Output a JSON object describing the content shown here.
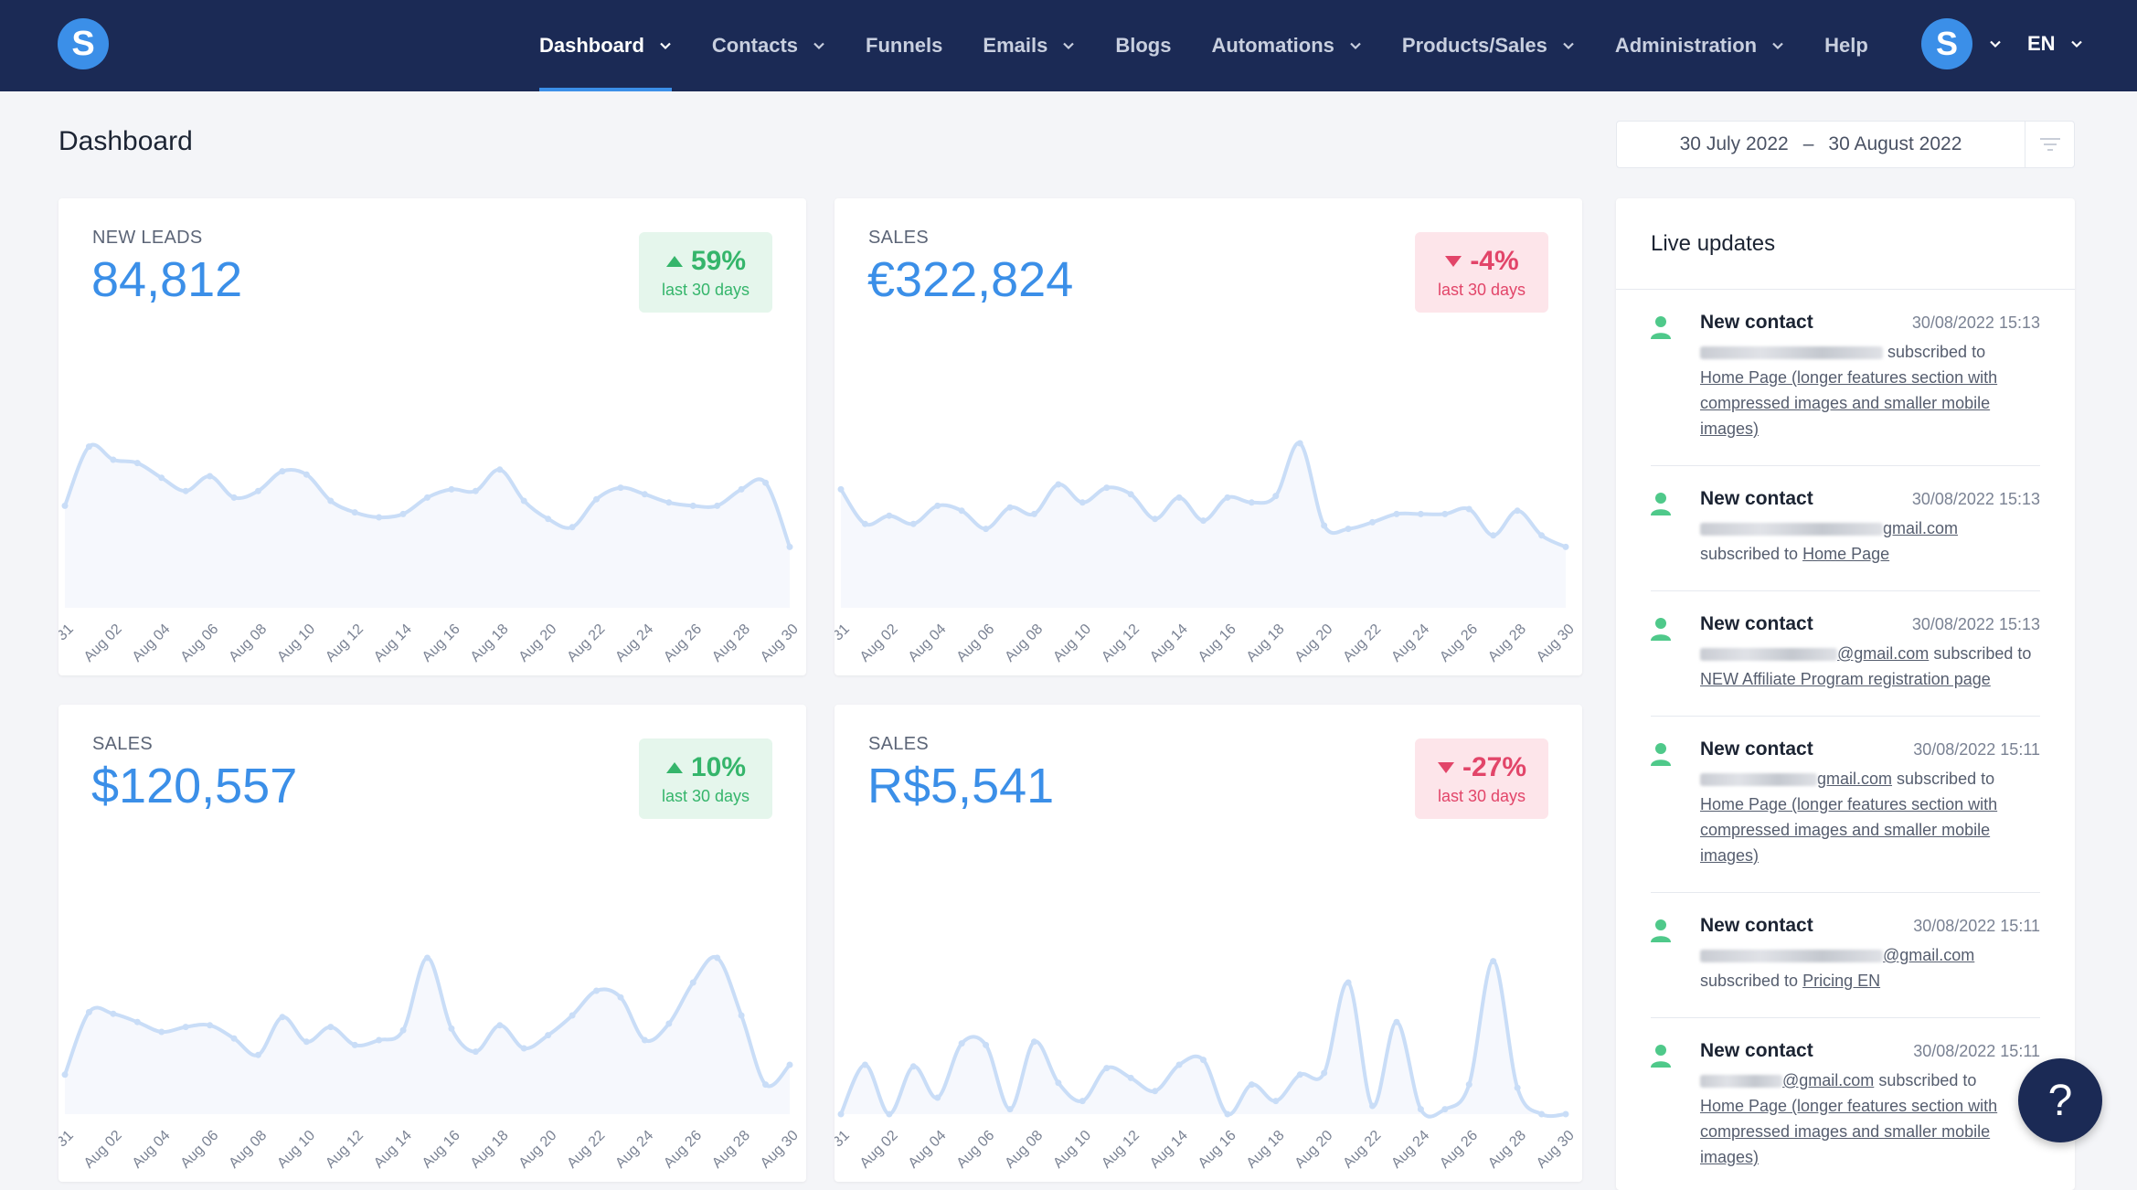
{
  "nav": {
    "items": [
      {
        "label": "Dashboard",
        "dropdown": true,
        "active": true
      },
      {
        "label": "Contacts",
        "dropdown": true
      },
      {
        "label": "Funnels",
        "dropdown": false
      },
      {
        "label": "Emails",
        "dropdown": true
      },
      {
        "label": "Blogs",
        "dropdown": false
      },
      {
        "label": "Automations",
        "dropdown": true
      },
      {
        "label": "Products/Sales",
        "dropdown": true
      },
      {
        "label": "Administration",
        "dropdown": true
      },
      {
        "label": "Help",
        "dropdown": false
      }
    ],
    "logo_letter": "S",
    "avatar_letter": "S",
    "language": "EN"
  },
  "page": {
    "title": "Dashboard",
    "date_from": "30 July 2022",
    "date_sep": "–",
    "date_to": "30 August 2022"
  },
  "cards": [
    {
      "label": "NEW LEADS",
      "value": "84,812",
      "change": "59%",
      "direction": "up",
      "period": "last 30 days"
    },
    {
      "label": "SALES",
      "value": "€322,824",
      "change": "-4%",
      "direction": "down",
      "period": "last 30 days"
    },
    {
      "label": "SALES",
      "value": "$120,557",
      "change": "10%",
      "direction": "up",
      "period": "last 30 days"
    },
    {
      "label": "SALES",
      "value": "R$5,541",
      "change": "-27%",
      "direction": "down",
      "period": "last 30 days"
    }
  ],
  "chart_data": [
    {
      "type": "area",
      "x": [
        "Jul 31",
        "Aug 01",
        "Aug 02",
        "Aug 03",
        "Aug 04",
        "Aug 05",
        "Aug 06",
        "Aug 07",
        "Aug 08",
        "Aug 09",
        "Aug 10",
        "Aug 11",
        "Aug 12",
        "Aug 13",
        "Aug 14",
        "Aug 15",
        "Aug 16",
        "Aug 17",
        "Aug 18",
        "Aug 19",
        "Aug 20",
        "Aug 21",
        "Aug 22",
        "Aug 23",
        "Aug 24",
        "Aug 25",
        "Aug 26",
        "Aug 27",
        "Aug 28",
        "Aug 29",
        "Aug 30"
      ],
      "values": [
        62,
        98,
        90,
        88,
        79,
        71,
        80,
        67,
        71,
        83,
        81,
        65,
        58,
        55,
        57,
        67,
        72,
        71,
        84,
        65,
        54,
        49,
        66,
        73,
        69,
        64,
        62,
        62,
        72,
        76,
        37
      ],
      "ylim": [
        0,
        100
      ],
      "color": "#c9ddf7"
    },
    {
      "type": "area",
      "x": [
        "Jul 31",
        "Aug 01",
        "Aug 02",
        "Aug 03",
        "Aug 04",
        "Aug 05",
        "Aug 06",
        "Aug 07",
        "Aug 08",
        "Aug 09",
        "Aug 10",
        "Aug 11",
        "Aug 12",
        "Aug 13",
        "Aug 14",
        "Aug 15",
        "Aug 16",
        "Aug 17",
        "Aug 18",
        "Aug 19",
        "Aug 20",
        "Aug 21",
        "Aug 22",
        "Aug 23",
        "Aug 24",
        "Aug 25",
        "Aug 26",
        "Aug 27",
        "Aug 28",
        "Aug 29",
        "Aug 30"
      ],
      "values": [
        72,
        51,
        56,
        51,
        62,
        59,
        48,
        61,
        57,
        75,
        64,
        73,
        69,
        54,
        67,
        53,
        67,
        64,
        68,
        100,
        50,
        48,
        52,
        57,
        57,
        57,
        60,
        44,
        59,
        44,
        37
      ],
      "ylim": [
        0,
        100
      ],
      "color": "#c9ddf7"
    },
    {
      "type": "area",
      "x": [
        "Jul 31",
        "Aug 01",
        "Aug 02",
        "Aug 03",
        "Aug 04",
        "Aug 05",
        "Aug 06",
        "Aug 07",
        "Aug 08",
        "Aug 09",
        "Aug 10",
        "Aug 11",
        "Aug 12",
        "Aug 13",
        "Aug 14",
        "Aug 15",
        "Aug 16",
        "Aug 17",
        "Aug 18",
        "Aug 19",
        "Aug 20",
        "Aug 21",
        "Aug 22",
        "Aug 23",
        "Aug 24",
        "Aug 25",
        "Aug 26",
        "Aug 27",
        "Aug 28",
        "Aug 29",
        "Aug 30"
      ],
      "values": [
        24,
        62,
        61,
        56,
        50,
        53,
        54,
        46,
        36,
        59,
        44,
        53,
        42,
        45,
        51,
        95,
        52,
        38,
        54,
        40,
        48,
        60,
        75,
        71,
        45,
        55,
        80,
        95,
        60,
        18,
        30
      ],
      "ylim": [
        0,
        100
      ],
      "color": "#c9ddf7"
    },
    {
      "type": "area",
      "x": [
        "Jul 31",
        "Aug 01",
        "Aug 02",
        "Aug 03",
        "Aug 04",
        "Aug 05",
        "Aug 06",
        "Aug 07",
        "Aug 08",
        "Aug 09",
        "Aug 10",
        "Aug 11",
        "Aug 12",
        "Aug 13",
        "Aug 14",
        "Aug 15",
        "Aug 16",
        "Aug 17",
        "Aug 18",
        "Aug 19",
        "Aug 20",
        "Aug 21",
        "Aug 22",
        "Aug 23",
        "Aug 24",
        "Aug 25",
        "Aug 26",
        "Aug 27",
        "Aug 28",
        "Aug 29",
        "Aug 30"
      ],
      "values": [
        0,
        30,
        0,
        29,
        10,
        43,
        42,
        3,
        44,
        19,
        8,
        28,
        22,
        14,
        30,
        33,
        0,
        18,
        8,
        24,
        25,
        80,
        5,
        56,
        3,
        3,
        18,
        93,
        16,
        0,
        0
      ],
      "ylim": [
        0,
        100
      ],
      "color": "#c9ddf7"
    }
  ],
  "x_tick_labels": [
    "31",
    "Aug 02",
    "Aug 04",
    "Aug 06",
    "Aug 08",
    "Aug 10",
    "Aug 12",
    "Aug 14",
    "Aug 16",
    "Aug 18",
    "Aug 20",
    "Aug 22",
    "Aug 24",
    "Aug 26",
    "Aug 28",
    "Aug 30"
  ],
  "live": {
    "title": "Live updates",
    "updates": [
      {
        "title": "New contact",
        "time": "30/08/2022 15:13",
        "suffix": "subscribed to",
        "link": "Home Page (longer features section with compressed images and smaller mobile images)"
      },
      {
        "title": "New contact",
        "time": "30/08/2022 15:13",
        "email_tail": "gmail.com",
        "prefix": "subscribed to",
        "link": "Home Page"
      },
      {
        "title": "New contact",
        "time": "30/08/2022 15:13",
        "email_tail": "@gmail.com",
        "suffix": "subscribed to",
        "link": "NEW Affiliate Program registration page"
      },
      {
        "title": "New contact",
        "time": "30/08/2022 15:11",
        "email_tail": "gmail.com",
        "suffix": "subscribed to",
        "link": "Home Page (longer features section with compressed images and smaller mobile images)"
      },
      {
        "title": "New contact",
        "time": "30/08/2022 15:11",
        "email_tail": "@gmail.com",
        "prefix": "subscribed to",
        "link": "Pricing EN"
      },
      {
        "title": "New contact",
        "time": "30/08/2022 15:11",
        "email_tail": "@gmail.com",
        "suffix": "subscribed to",
        "link": "Home Page (longer features section with compressed images and smaller mobile images)"
      }
    ]
  },
  "help": {
    "label": "?"
  },
  "colors": {
    "nav_bg": "#1b2a55",
    "accent": "#3b8fe8",
    "up": "#35b56b",
    "down": "#e24569"
  }
}
